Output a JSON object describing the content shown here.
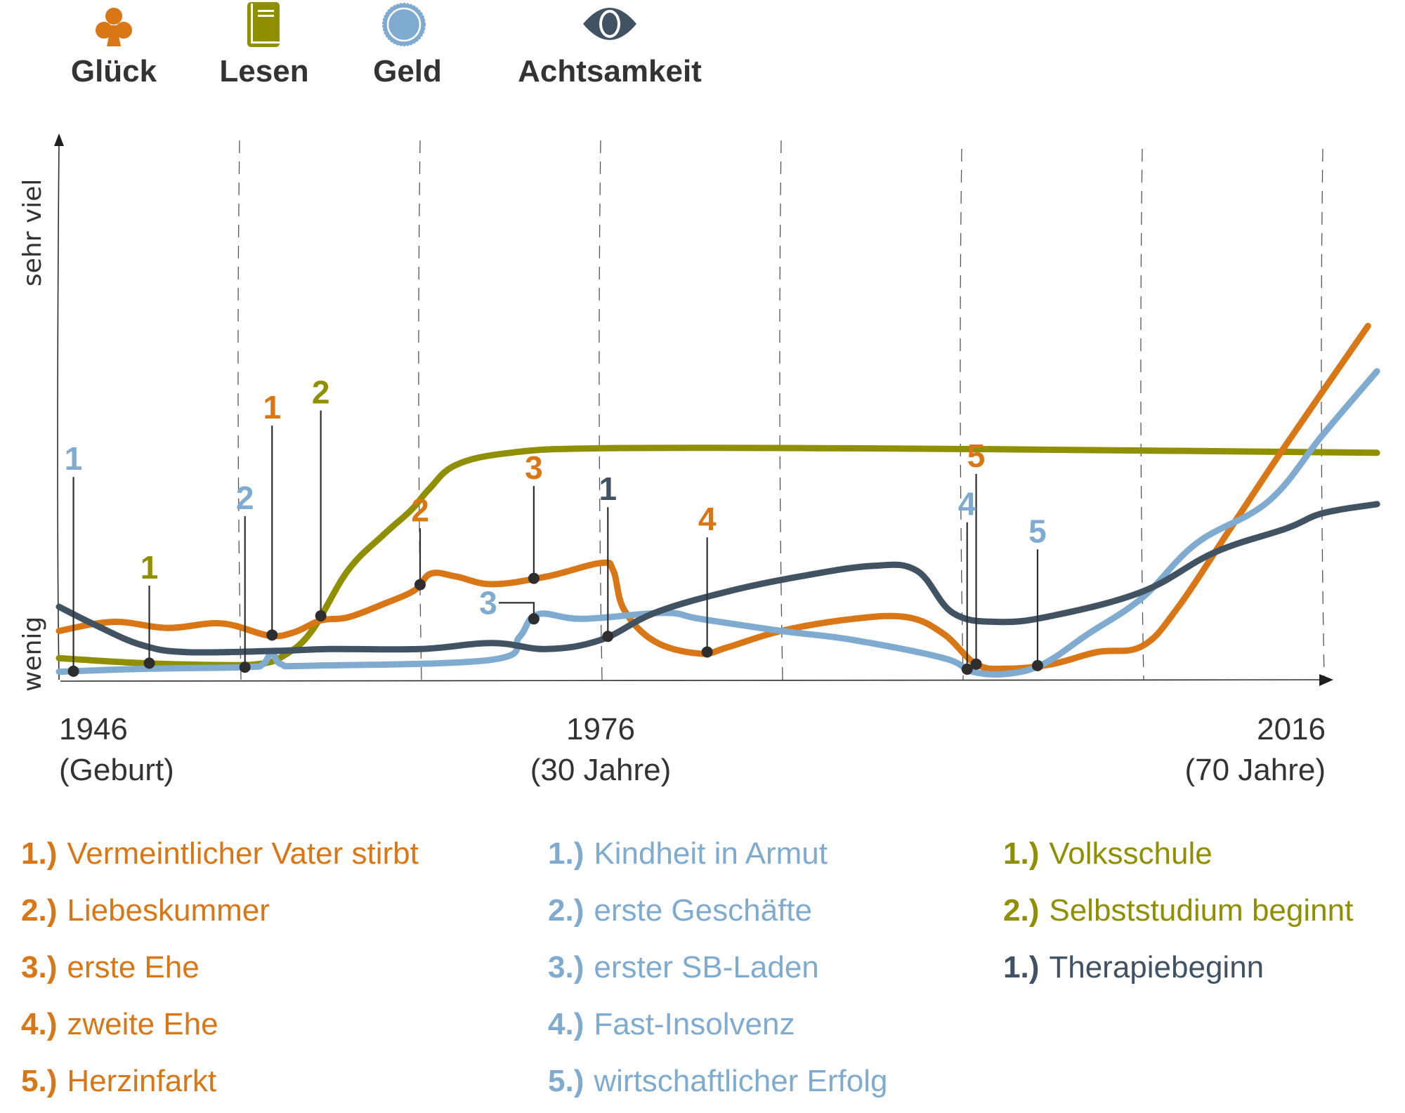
{
  "colors": {
    "glueck": "#d97716",
    "lesen": "#8f8f00",
    "geld": "#80abd0",
    "achtsamkeit": "#415263",
    "axis": "#2e2e2e",
    "dot": "#2e2e2e"
  },
  "legend": [
    {
      "key": "glueck",
      "label": "Glück",
      "icon": "club-icon"
    },
    {
      "key": "lesen",
      "label": "Lesen",
      "icon": "book-icon"
    },
    {
      "key": "geld",
      "label": "Geld",
      "icon": "coin-icon"
    },
    {
      "key": "achtsamkeit",
      "label": "Achtsamkeit",
      "icon": "eye-icon"
    }
  ],
  "chart_data": {
    "type": "line",
    "title": "",
    "xlabel": "",
    "ylabel_top": "sehr viel",
    "ylabel_bottom": "wenig",
    "xlim": [
      1946,
      2019
    ],
    "ylim": [
      0,
      100
    ],
    "grid": "vertical dashed lines every 10 years",
    "x_ticks": [
      {
        "year": 1946,
        "line1": "1946",
        "line2": "(Geburt)"
      },
      {
        "year": 1976,
        "line1": "1976",
        "line2": "(30 Jahre)"
      },
      {
        "year": 2016,
        "line1": "2016",
        "line2": "(70 Jahre)"
      }
    ],
    "gridlines": [
      1956,
      1966,
      1976,
      1986,
      1996,
      2006,
      2016
    ],
    "series": [
      {
        "key": "lesen",
        "name": "Lesen",
        "points": [
          [
            1946,
            6
          ],
          [
            1950,
            4.5
          ],
          [
            1954,
            3.8
          ],
          [
            1957,
            4
          ],
          [
            1958.5,
            7
          ],
          [
            1960,
            15
          ],
          [
            1962,
            35
          ],
          [
            1964,
            47
          ],
          [
            1965.5,
            55
          ],
          [
            1966.5,
            62
          ],
          [
            1968,
            70
          ],
          [
            1971,
            74
          ],
          [
            1976,
            75.5
          ],
          [
            1990,
            75.5
          ],
          [
            2005,
            74.8
          ],
          [
            2019,
            74
          ]
        ]
      },
      {
        "key": "glueck",
        "name": "Glück",
        "points": [
          [
            1946,
            15
          ],
          [
            1949,
            18
          ],
          [
            1952,
            16
          ],
          [
            1955,
            17.5
          ],
          [
            1957.6,
            13.5
          ],
          [
            1959,
            14.5
          ],
          [
            1960.5,
            18.5
          ],
          [
            1962,
            19.5
          ],
          [
            1964,
            24
          ],
          [
            1965.7,
            28.5
          ],
          [
            1966.6,
            34
          ],
          [
            1968,
            33
          ],
          [
            1970,
            30.5
          ],
          [
            1973,
            33
          ],
          [
            1976,
            37.5
          ],
          [
            1976.7,
            35
          ],
          [
            1977.3,
            22
          ],
          [
            1979,
            11.5
          ],
          [
            1981.5,
            7.5
          ],
          [
            1983,
            9.5
          ],
          [
            1986,
            15
          ],
          [
            1990,
            19
          ],
          [
            1993,
            19.5
          ],
          [
            1995,
            14
          ],
          [
            1996.8,
            4
          ],
          [
            1998.5,
            2.5
          ],
          [
            2001,
            4
          ],
          [
            2003.5,
            8
          ],
          [
            2006,
            10
          ],
          [
            2008,
            23
          ],
          [
            2011,
            50
          ],
          [
            2014,
            77
          ],
          [
            2018.5,
            116
          ]
        ]
      },
      {
        "key": "geld",
        "name": "Geld",
        "points": [
          [
            1946,
            1.5
          ],
          [
            1951,
            2.5
          ],
          [
            1956.3,
            3
          ],
          [
            1957.3,
            4
          ],
          [
            1957.8,
            8
          ],
          [
            1958.3,
            4
          ],
          [
            1960,
            3.5
          ],
          [
            1970,
            5.5
          ],
          [
            1971.5,
            13
          ],
          [
            1972.5,
            20.5
          ],
          [
            1975,
            19
          ],
          [
            1979.5,
            21
          ],
          [
            1981.5,
            19
          ],
          [
            1986,
            15
          ],
          [
            1990,
            12
          ],
          [
            1995,
            6
          ],
          [
            1996.6,
            1.5
          ],
          [
            1998.5,
            0.8
          ],
          [
            2000.5,
            4
          ],
          [
            2003,
            14
          ],
          [
            2006,
            26
          ],
          [
            2009,
            44
          ],
          [
            2013,
            58
          ],
          [
            2016,
            80
          ],
          [
            2019,
            101
          ]
        ]
      },
      {
        "key": "achtsamkeit",
        "name": "Achtsamkeit",
        "points": [
          [
            1946,
            23
          ],
          [
            1948,
            17
          ],
          [
            1950.5,
            10.5
          ],
          [
            1953,
            8
          ],
          [
            1958,
            8.4
          ],
          [
            1961,
            9
          ],
          [
            1966,
            9
          ],
          [
            1970,
            11
          ],
          [
            1973,
            9
          ],
          [
            1976,
            12
          ],
          [
            1979,
            21
          ],
          [
            1983,
            28
          ],
          [
            1987,
            33
          ],
          [
            1991,
            36.5
          ],
          [
            1993.5,
            35
          ],
          [
            1995.5,
            21
          ],
          [
            1998,
            18
          ],
          [
            2001,
            20
          ],
          [
            2006,
            28
          ],
          [
            2010,
            41
          ],
          [
            2014,
            49
          ],
          [
            2016,
            54
          ],
          [
            2019,
            57
          ]
        ]
      }
    ],
    "events": [
      {
        "series": "glueck",
        "num": "1",
        "x": 1957.8,
        "label_level": 83
      },
      {
        "series": "glueck",
        "num": "2",
        "x": 1966,
        "label_level": 49
      },
      {
        "series": "glueck",
        "num": "3",
        "x": 1972.3,
        "label_level": 63
      },
      {
        "series": "glueck",
        "num": "4",
        "x": 1981.9,
        "label_level": 46
      },
      {
        "series": "glueck",
        "num": "5",
        "x": 1996.8,
        "label_level": 67
      },
      {
        "series": "geld",
        "num": "1",
        "x": 1946.8,
        "label_level": 66
      },
      {
        "series": "geld",
        "num": "2",
        "x": 1956.3,
        "label_level": 53
      },
      {
        "series": "geld",
        "num": "3",
        "x": 1972.3,
        "label_level": 22,
        "label_offset": "left"
      },
      {
        "series": "geld",
        "num": "4",
        "x": 1996.3,
        "label_level": 51
      },
      {
        "series": "geld",
        "num": "5",
        "x": 2000.2,
        "label_level": 42
      },
      {
        "series": "lesen",
        "num": "1",
        "x": 1951,
        "label_level": 30
      },
      {
        "series": "lesen",
        "num": "2",
        "x": 1960.5,
        "label_level": 88
      },
      {
        "series": "achtsamkeit",
        "num": "1",
        "x": 1976.4,
        "label_level": 56
      }
    ]
  },
  "notes": {
    "glueck": [
      {
        "num": "1.)",
        "text": "Vermeintlicher Vater stirbt"
      },
      {
        "num": "2.)",
        "text": "Liebeskummer"
      },
      {
        "num": "3.)",
        "text": "erste Ehe"
      },
      {
        "num": "4.)",
        "text": "zweite Ehe"
      },
      {
        "num": "5.)",
        "text": "Herzinfarkt"
      }
    ],
    "geld": [
      {
        "num": "1.)",
        "text": "Kindheit in Armut"
      },
      {
        "num": "2.)",
        "text": "erste Geschäfte"
      },
      {
        "num": "3.)",
        "text": "erster SB-Laden"
      },
      {
        "num": "4.)",
        "text": "Fast-Insolvenz"
      },
      {
        "num": "5.)",
        "text": "wirtschaftlicher Erfolg"
      }
    ],
    "lesen": [
      {
        "num": "1.)",
        "text": "Volksschule"
      },
      {
        "num": "2.)",
        "text": "Selbststudium beginnt"
      }
    ],
    "achtsamkeit": [
      {
        "num": "1.)",
        "text": "Therapiebeginn"
      }
    ]
  }
}
